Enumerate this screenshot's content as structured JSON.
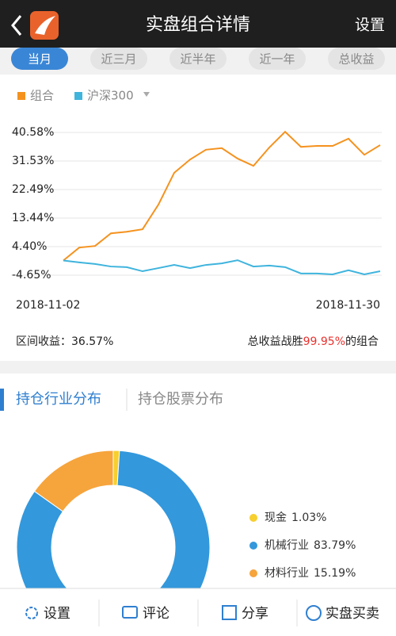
{
  "header": {
    "title": "实盘组合详情",
    "action": "设置"
  },
  "tabs": [
    "当月",
    "近三月",
    "近半年",
    "近一年",
    "总收益"
  ],
  "summary": {
    "range_label": "区间收益：",
    "range_value": "36.57%",
    "win_prefix": "总收益战胜",
    "win_value": "99.95%",
    "win_suffix": "的组合"
  },
  "section_tabs": [
    "持仓行业分布",
    "持仓股票分布"
  ],
  "bottom_bar": [
    "设置",
    "评论",
    "分享",
    "实盘买卖"
  ],
  "chart_data": [
    {
      "type": "line",
      "categories": [
        "2018-11-02",
        null,
        null,
        null,
        null,
        null,
        null,
        null,
        null,
        null,
        null,
        null,
        null,
        null,
        null,
        null,
        null,
        null,
        null,
        null,
        "2018-11-30"
      ],
      "series": [
        {
          "name": "组合",
          "color": "#f5921e",
          "values": [
            0,
            4.1,
            4.6,
            8.6,
            9.1,
            9.9,
            17.7,
            27.8,
            32.0,
            35.1,
            35.6,
            32.3,
            30.0,
            35.8,
            40.8,
            36.0,
            36.3,
            36.3,
            38.6,
            33.5,
            36.57
          ]
        },
        {
          "name": "沪深300",
          "color": "#3fb4dd",
          "values": [
            0,
            -0.6,
            -1.1,
            -1.9,
            -2.1,
            -3.4,
            -2.4,
            -1.4,
            -2.4,
            -1.4,
            -0.9,
            0.1,
            -1.9,
            -1.6,
            -2.1,
            -4.1,
            -4.1,
            -4.4,
            -3.1,
            -4.4,
            -3.4
          ]
        }
      ],
      "ylim": [
        -9.17,
        45.1
      ],
      "yticks": [
        {
          "value": 40.58,
          "label": "40.58%"
        },
        {
          "value": 31.53,
          "label": "31.53%"
        },
        {
          "value": 22.49,
          "label": "22.49%"
        },
        {
          "value": 13.44,
          "label": "13.44%"
        },
        {
          "value": 4.4,
          "label": "4.40%"
        },
        {
          "value": -4.65,
          "label": "-4.65%"
        }
      ],
      "grid": true
    },
    {
      "type": "pie",
      "categories": [
        "现金",
        "机械行业",
        "材料行业"
      ],
      "values": [
        1.03,
        83.79,
        15.19
      ],
      "value_labels": [
        "1.03%",
        "83.79%",
        "15.19%"
      ],
      "colors": [
        "#f7cf2e",
        "#3398dc",
        "#f6a43c"
      ]
    }
  ]
}
